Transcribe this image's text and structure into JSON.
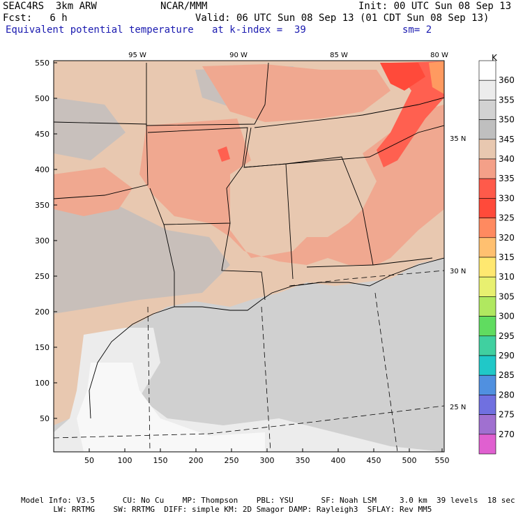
{
  "header": {
    "model": "SEAC4RS  3km ARW",
    "org": "NCAR/MMM",
    "init": "Init: 00 UTC Sun 08 Sep 13",
    "fcst": "Fcst:   6 h",
    "valid": "Valid: 06 UTC Sun 08 Sep 13 (01 CDT Sun 08 Sep 13)",
    "field": "Equivalent potential temperature",
    "level": "at k-index =  39",
    "smooth": "sm= 2"
  },
  "axes": {
    "x_ticks": [
      "50",
      "100",
      "150",
      "200",
      "250",
      "300",
      "350",
      "400",
      "450",
      "500",
      "550"
    ],
    "y_ticks": [
      "550",
      "500",
      "450",
      "400",
      "350",
      "300",
      "250",
      "200",
      "150",
      "100",
      "50"
    ],
    "lon_labels": [
      "95 W",
      "90 W",
      "85 W",
      "80 W"
    ],
    "lat_labels": [
      "35 N",
      "30 N",
      "25 N"
    ]
  },
  "colorbar": {
    "unit": "K",
    "levels": [
      "360",
      "355",
      "350",
      "345",
      "340",
      "335",
      "330",
      "325",
      "320",
      "315",
      "310",
      "305",
      "300",
      "295",
      "290",
      "285",
      "280",
      "275",
      "270"
    ],
    "colors": [
      "#ffffff",
      "#ececec",
      "#d2d2d2",
      "#bfbfbf",
      "#e8c8b0",
      "#f4a088",
      "#ff5a4a",
      "#ff4a3a",
      "#ff8a60",
      "#ffc070",
      "#ffe870",
      "#e8f070",
      "#b0e860",
      "#60dc60",
      "#40d0a0",
      "#20c8c8",
      "#5090e0",
      "#7070e0",
      "#a070d0",
      "#e060d0"
    ]
  },
  "footer": {
    "line1": "Model Info: V3.5      CU: No Cu    MP: Thompson    PBL: YSU      SF: Noah LSM     3.0 km  39 levels  18 sec",
    "line2": "       LW: RRTMG    SW: RRTMG  DIFF: simple KM: 2D Smagor DAMP: Rayleigh3  SFLAY: Rev MM5"
  }
}
